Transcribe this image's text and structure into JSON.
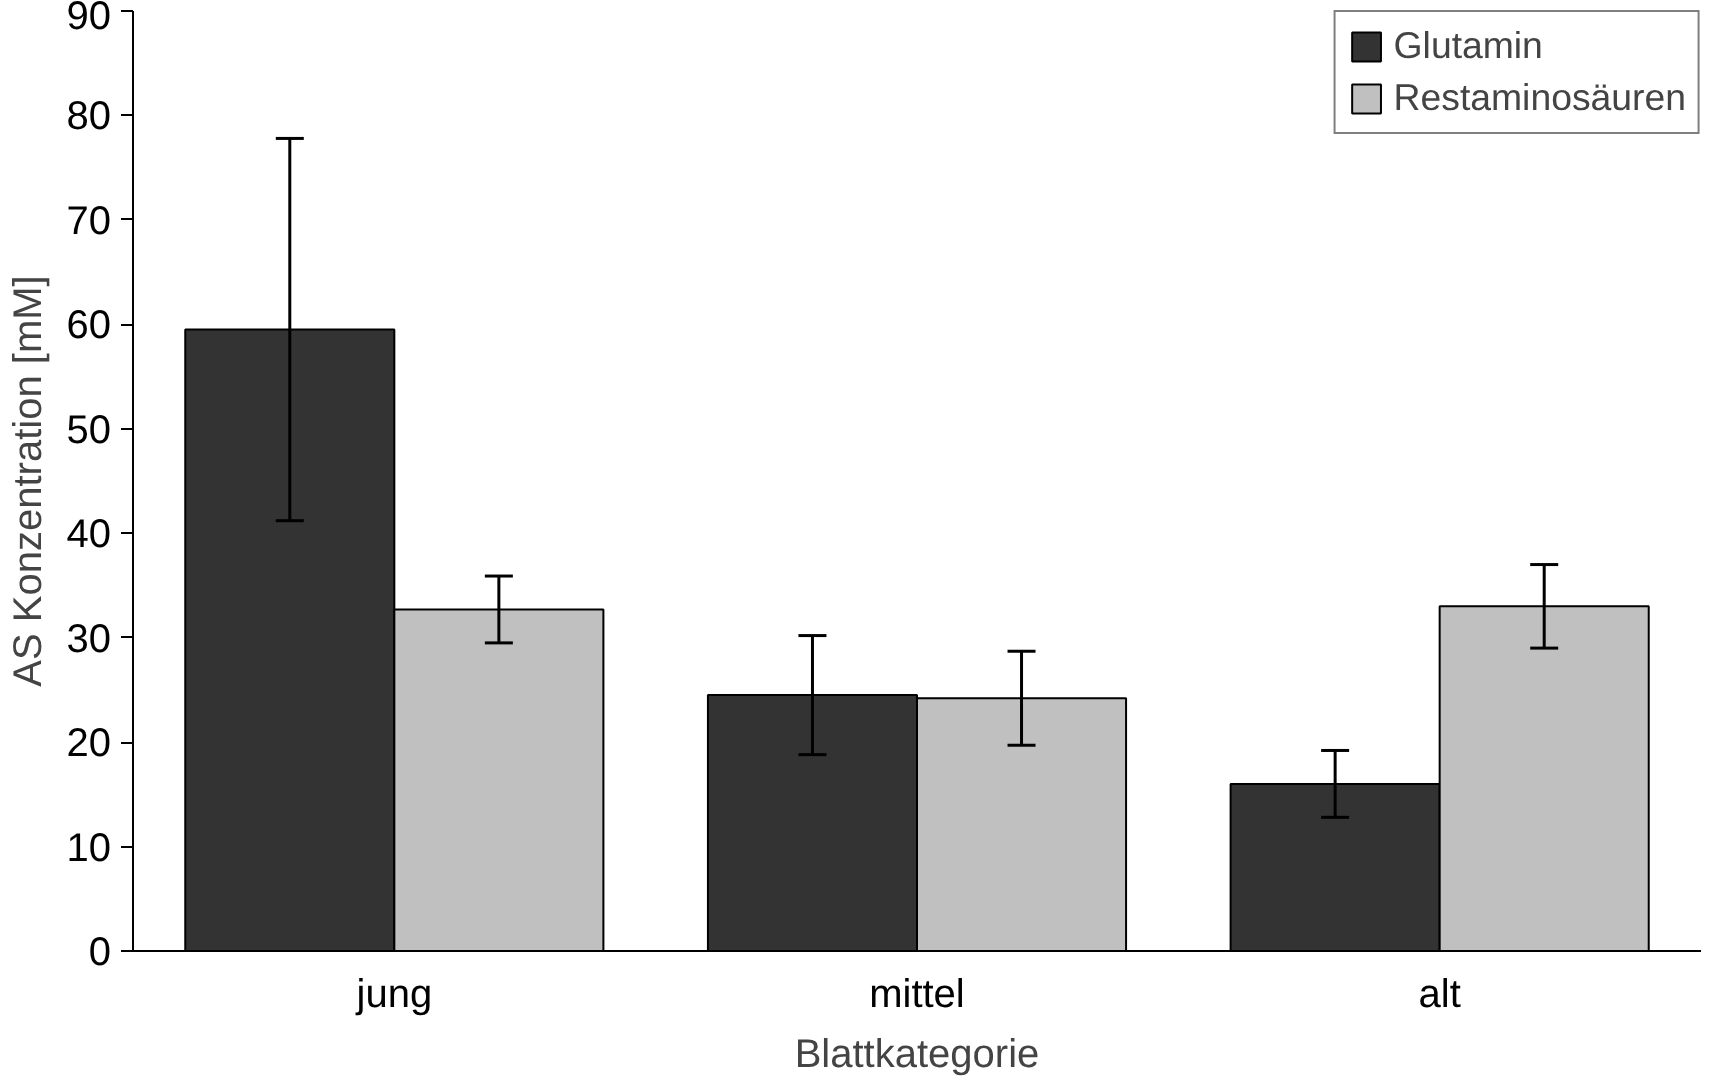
{
  "chart_data": {
    "type": "bar",
    "xlabel": "Blattkategorie",
    "ylabel": "AS Konzentration [mM]",
    "categories": [
      "jung",
      "mittel",
      "alt"
    ],
    "series": [
      {
        "name": "Glutamin",
        "color": "#333333",
        "values": [
          59.5,
          24.5,
          16
        ],
        "errors": [
          18.3,
          5.7,
          3.2
        ]
      },
      {
        "name": "Restaminosäuren",
        "color": "#c0c0c0",
        "values": [
          32.7,
          24.2,
          33
        ],
        "errors": [
          3.2,
          4.5,
          4
        ]
      }
    ],
    "ylim": [
      0,
      90
    ],
    "yticks": [
      0,
      10,
      20,
      30,
      40,
      50,
      60,
      70,
      80,
      90
    ],
    "grid": false,
    "legend": "top right"
  }
}
